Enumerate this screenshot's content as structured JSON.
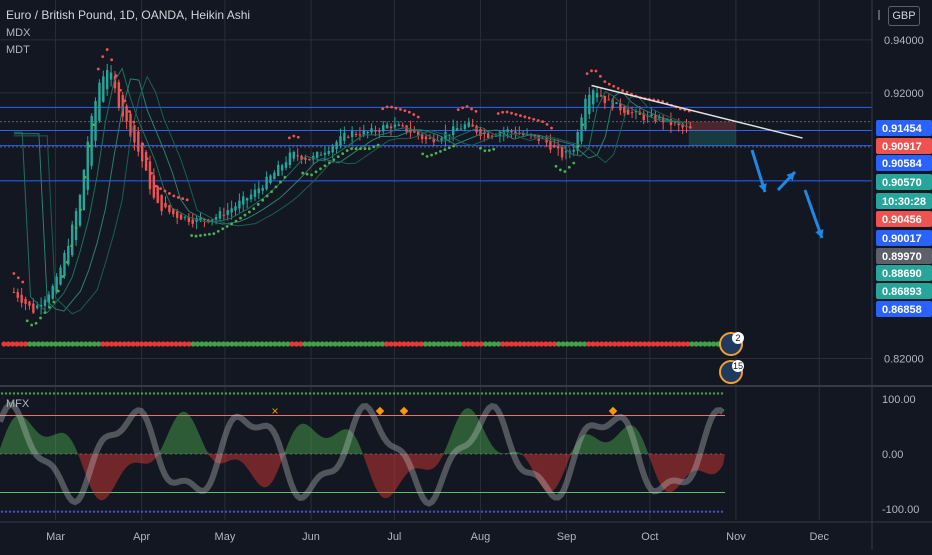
{
  "header": {
    "title": "Euro / British Pound, 1D, OANDA, Heikin Ashi",
    "indicator_1": "MDX",
    "indicator_2": "MDT"
  },
  "currency": "GBP",
  "mfx_label": "MFX",
  "colors": {
    "bg": "#131722",
    "bull": "#26a69a",
    "bear": "#ef5350",
    "accent_blue": "#2962ff",
    "grid": "#2a2e39",
    "text": "#b2b5be",
    "green_dot": "#4caf50",
    "red_dot": "#ef5350"
  },
  "chart_data": {
    "type": "line",
    "x_ticks": [
      "Mar",
      "Apr",
      "May",
      "Jun",
      "Jul",
      "Aug",
      "Sep",
      "Oct",
      "Nov",
      "Dec"
    ],
    "y_ticks": [
      "0.94000",
      "0.92000",
      "0.82000"
    ],
    "ylim": [
      0.81,
      0.955
    ],
    "price_series": {
      "name": "",
      "x": [
        "2020-02-15",
        "2020-02-22",
        "2020-03-01",
        "2020-03-06",
        "2020-03-10",
        "2020-03-13",
        "2020-03-17",
        "2020-03-20",
        "2020-03-24",
        "2020-03-28",
        "2020-04-01",
        "2020-04-06",
        "2020-04-13",
        "2020-04-20",
        "2020-04-27",
        "2020-05-04",
        "2020-05-11",
        "2020-05-18",
        "2020-05-25",
        "2020-06-01",
        "2020-06-08",
        "2020-06-15",
        "2020-06-22",
        "2020-06-29",
        "2020-07-06",
        "2020-07-13",
        "2020-07-20",
        "2020-07-27",
        "2020-08-03",
        "2020-08-10",
        "2020-08-17",
        "2020-08-24",
        "2020-08-31",
        "2020-09-04",
        "2020-09-08",
        "2020-09-11",
        "2020-09-15",
        "2020-09-21",
        "2020-09-28",
        "2020-10-05",
        "2020-10-12",
        "2020-10-16"
      ],
      "y": [
        0.845,
        0.838,
        0.848,
        0.865,
        0.882,
        0.905,
        0.925,
        0.93,
        0.915,
        0.905,
        0.895,
        0.878,
        0.874,
        0.872,
        0.873,
        0.877,
        0.882,
        0.889,
        0.897,
        0.895,
        0.9,
        0.905,
        0.905,
        0.908,
        0.906,
        0.902,
        0.905,
        0.908,
        0.904,
        0.906,
        0.904,
        0.902,
        0.896,
        0.9,
        0.92,
        0.922,
        0.917,
        0.914,
        0.911,
        0.91,
        0.907,
        0.906
      ]
    },
    "price_labels": [
      {
        "value": "0.91454",
        "color": "#2962ff"
      },
      {
        "value": "0.90917",
        "color": "#ef5350"
      },
      {
        "value": "0.90584",
        "color": "#2962ff"
      },
      {
        "value": "0.90570",
        "color": "#26a69a"
      },
      {
        "value": "10:30:28",
        "color": "#26a69a"
      },
      {
        "value": "0.90456",
        "color": "#ef5350"
      },
      {
        "value": "0.90017",
        "color": "#2962ff"
      },
      {
        "value": "0.89970",
        "color": "#5d606b"
      },
      {
        "value": "0.88690",
        "color": "#26a69a"
      },
      {
        "value": "0.86893",
        "color": "#26a69a"
      },
      {
        "value": "0.86858",
        "color": "#2962ff"
      }
    ],
    "horizontal_levels": [
      0.91454,
      0.90917,
      0.90584,
      0.90017,
      0.8997,
      0.8869
    ],
    "oscillator": {
      "y_ticks": [
        "100.00",
        "0.00",
        "-100.00"
      ],
      "ylim": [
        -120,
        120
      ]
    },
    "badges": [
      "2",
      "15"
    ]
  }
}
